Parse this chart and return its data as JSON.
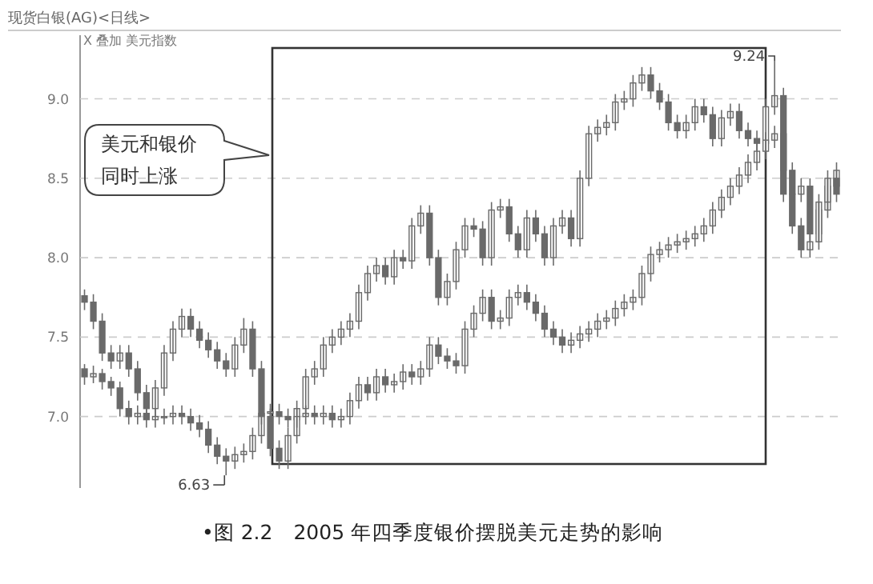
{
  "chart_data": {
    "type": "candlestick",
    "title": "现货白银(AG)<日线>",
    "subtitle": "X 叠加 美元指数",
    "categories": [
      null,
      null,
      null,
      null,
      null,
      null,
      null,
      null,
      null,
      null,
      null,
      null,
      null,
      null,
      null,
      null,
      null,
      null,
      null,
      null,
      null,
      null,
      null,
      null,
      null,
      null,
      null,
      null,
      null,
      null,
      null,
      null,
      null,
      null,
      null,
      null,
      null,
      null,
      null,
      null,
      null,
      null,
      null,
      null,
      null,
      null,
      null,
      null,
      null,
      null,
      null,
      null,
      null,
      null,
      null,
      null,
      null,
      null,
      null,
      null,
      null,
      null,
      null,
      null,
      null,
      null,
      null,
      null,
      null,
      null,
      null,
      null,
      null,
      null,
      null,
      null,
      null,
      null,
      null,
      null,
      null,
      null,
      null,
      null,
      null,
      null
    ],
    "ylim": [
      6.55,
      9.32
    ],
    "yticks": [
      {
        "value": 7,
        "label": "7.0"
      },
      7.5,
      {
        "value": 8,
        "label": "8.0"
      },
      8.5,
      {
        "value": 9,
        "label": "9.0"
      }
    ],
    "grid": "y",
    "series": [
      {
        "color": "#6a6a6a",
        "ohlc": [
          [
            7.3,
            7.33,
            7.2,
            7.25
          ],
          [
            7.25,
            7.32,
            7.21,
            7.27
          ],
          [
            7.27,
            7.3,
            7.17,
            7.22
          ],
          [
            7.22,
            7.25,
            7.13,
            7.18
          ],
          [
            7.18,
            7.22,
            7.0,
            7.05
          ],
          [
            7.05,
            7.1,
            6.95,
            7.0
          ],
          [
            7.0,
            7.07,
            6.95,
            7.02
          ],
          [
            7.02,
            7.07,
            6.93,
            6.98
          ],
          [
            6.98,
            7.05,
            6.93,
            7.0
          ],
          [
            7.0,
            7.05,
            6.95,
            7.0
          ],
          [
            7.0,
            7.07,
            6.95,
            7.02
          ],
          [
            7.02,
            7.07,
            6.95,
            7.0
          ],
          [
            7.0,
            7.05,
            6.91,
            6.96
          ],
          [
            6.96,
            7.01,
            6.87,
            6.92
          ],
          [
            6.92,
            6.97,
            6.77,
            6.82
          ],
          [
            6.82,
            6.87,
            6.7,
            6.75
          ],
          [
            6.75,
            6.8,
            6.63,
            6.72
          ],
          [
            6.72,
            6.81,
            6.67,
            6.76
          ],
          [
            6.76,
            6.83,
            6.71,
            6.78
          ],
          [
            6.78,
            6.93,
            6.73,
            6.88
          ],
          [
            6.88,
            7.07,
            6.83,
            7.02
          ],
          [
            7.02,
            7.08,
            6.97,
            7.03
          ],
          [
            7.03,
            7.08,
            6.95,
            7.0
          ],
          [
            7.0,
            7.05,
            6.93,
            6.98
          ],
          [
            6.98,
            7.1,
            6.93,
            7.05
          ],
          [
            7.05,
            7.3,
            7.0,
            7.25
          ],
          [
            7.25,
            7.35,
            7.2,
            7.3
          ],
          [
            7.3,
            7.5,
            7.25,
            7.45
          ],
          [
            7.45,
            7.55,
            7.4,
            7.5
          ],
          [
            7.5,
            7.6,
            7.45,
            7.55
          ],
          [
            7.55,
            7.65,
            7.5,
            7.6
          ],
          [
            7.6,
            7.83,
            7.55,
            7.78
          ],
          [
            7.78,
            7.95,
            7.73,
            7.9
          ],
          [
            7.9,
            8.0,
            7.85,
            7.95
          ],
          [
            7.95,
            8.0,
            7.83,
            7.88
          ],
          [
            7.88,
            8.05,
            7.83,
            8.0
          ],
          [
            8.0,
            8.05,
            7.93,
            7.98
          ],
          [
            7.98,
            8.25,
            7.93,
            8.2
          ],
          [
            8.2,
            8.33,
            8.15,
            8.28
          ],
          [
            8.28,
            8.33,
            7.95,
            8.0
          ],
          [
            8.0,
            8.05,
            7.7,
            7.75
          ],
          [
            7.75,
            7.9,
            7.7,
            7.85
          ],
          [
            7.85,
            8.1,
            7.8,
            8.05
          ],
          [
            8.05,
            8.25,
            8.0,
            8.2
          ],
          [
            8.2,
            8.25,
            8.13,
            8.18
          ],
          [
            8.18,
            8.23,
            7.95,
            8.0
          ],
          [
            8.0,
            8.35,
            7.95,
            8.3
          ],
          [
            8.3,
            8.37,
            8.25,
            8.32
          ],
          [
            8.32,
            8.37,
            8.1,
            8.15
          ],
          [
            8.15,
            8.2,
            8.0,
            8.05
          ],
          [
            8.05,
            8.3,
            8.0,
            8.25
          ],
          [
            8.25,
            8.3,
            8.1,
            8.15
          ],
          [
            8.15,
            8.2,
            7.95,
            8.0
          ],
          [
            8.0,
            8.25,
            7.95,
            8.2
          ],
          [
            8.2,
            8.3,
            8.15,
            8.25
          ],
          [
            8.25,
            8.3,
            8.07,
            8.12
          ],
          [
            8.12,
            8.55,
            8.07,
            8.5
          ],
          [
            8.5,
            8.83,
            8.45,
            8.78
          ],
          [
            8.78,
            8.87,
            8.73,
            8.82
          ],
          [
            8.82,
            8.9,
            8.77,
            8.85
          ],
          [
            8.85,
            9.03,
            8.8,
            8.98
          ],
          [
            8.98,
            9.05,
            8.93,
            9.0
          ],
          [
            9.0,
            9.15,
            8.95,
            9.1
          ],
          [
            9.1,
            9.2,
            9.05,
            9.15
          ],
          [
            9.15,
            9.2,
            9.0,
            9.05
          ],
          [
            9.05,
            9.1,
            8.93,
            8.98
          ],
          [
            8.98,
            9.03,
            8.8,
            8.85
          ],
          [
            8.85,
            8.9,
            8.75,
            8.8
          ],
          [
            8.8,
            8.9,
            8.75,
            8.85
          ],
          [
            8.85,
            9.0,
            8.8,
            8.95
          ],
          [
            8.95,
            9.0,
            8.85,
            8.9
          ],
          [
            8.9,
            8.95,
            8.7,
            8.75
          ],
          [
            8.75,
            8.93,
            8.7,
            8.88
          ],
          [
            8.88,
            8.97,
            8.83,
            8.92
          ],
          [
            8.92,
            8.97,
            8.75,
            8.8
          ],
          [
            8.8,
            8.85,
            8.7,
            8.75
          ],
          [
            8.75,
            8.8,
            8.67,
            8.72
          ],
          [
            8.72,
            9.0,
            8.67,
            8.95
          ],
          [
            8.95,
            9.24,
            8.9,
            9.02
          ],
          [
            9.02,
            9.07,
            8.5,
            8.55
          ],
          [
            8.55,
            8.6,
            8.35,
            8.4
          ],
          [
            8.4,
            8.5,
            8.35,
            8.45
          ],
          [
            8.45,
            8.5,
            8.1,
            8.15
          ],
          [
            8.15,
            8.35,
            8.1,
            8.3
          ],
          [
            8.3,
            8.5,
            8.25,
            8.45
          ],
          [
            8.45,
            8.6,
            8.4,
            8.55
          ]
        ]
      },
      {
        "color": "#6a6a6a",
        "ohlc": [
          [
            7.76,
            7.8,
            7.67,
            7.72
          ],
          [
            7.72,
            7.77,
            7.55,
            7.6
          ],
          [
            7.6,
            7.65,
            7.35,
            7.4
          ],
          [
            7.4,
            7.45,
            7.3,
            7.35
          ],
          [
            7.35,
            7.45,
            7.3,
            7.4
          ],
          [
            7.4,
            7.45,
            7.25,
            7.3
          ],
          [
            7.3,
            7.35,
            7.1,
            7.15
          ],
          [
            7.15,
            7.2,
            7.0,
            7.05
          ],
          [
            7.05,
            7.23,
            7.0,
            7.18
          ],
          [
            7.18,
            7.45,
            7.13,
            7.4
          ],
          [
            7.4,
            7.6,
            7.35,
            7.55
          ],
          [
            7.55,
            7.68,
            7.5,
            7.63
          ],
          [
            7.63,
            7.68,
            7.5,
            7.55
          ],
          [
            7.55,
            7.6,
            7.43,
            7.48
          ],
          [
            7.48,
            7.53,
            7.37,
            7.42
          ],
          [
            7.42,
            7.47,
            7.3,
            7.35
          ],
          [
            7.35,
            7.4,
            7.25,
            7.3
          ],
          [
            7.3,
            7.5,
            7.25,
            7.45
          ],
          [
            7.45,
            7.62,
            7.4,
            7.55
          ],
          [
            7.55,
            7.6,
            7.25,
            7.3
          ],
          [
            7.3,
            7.35,
            6.95,
            7.0
          ],
          [
            7.0,
            7.05,
            6.75,
            6.8
          ],
          [
            6.8,
            6.85,
            6.67,
            6.72
          ],
          [
            6.72,
            6.93,
            6.67,
            6.88
          ],
          [
            6.88,
            7.05,
            6.83,
            7.0
          ],
          [
            7.0,
            7.07,
            6.95,
            7.02
          ],
          [
            7.02,
            7.07,
            6.95,
            7.0
          ],
          [
            7.0,
            7.07,
            6.95,
            7.02
          ],
          [
            7.02,
            7.07,
            6.93,
            6.98
          ],
          [
            6.98,
            7.05,
            6.93,
            7.0
          ],
          [
            7.0,
            7.15,
            6.95,
            7.1
          ],
          [
            7.1,
            7.25,
            7.05,
            7.2
          ],
          [
            7.2,
            7.25,
            7.1,
            7.15
          ],
          [
            7.15,
            7.3,
            7.1,
            7.25
          ],
          [
            7.25,
            7.3,
            7.15,
            7.2
          ],
          [
            7.2,
            7.27,
            7.15,
            7.22
          ],
          [
            7.22,
            7.33,
            7.17,
            7.28
          ],
          [
            7.28,
            7.33,
            7.2,
            7.25
          ],
          [
            7.25,
            7.35,
            7.2,
            7.3
          ],
          [
            7.3,
            7.5,
            7.25,
            7.45
          ],
          [
            7.45,
            7.5,
            7.33,
            7.38
          ],
          [
            7.38,
            7.43,
            7.3,
            7.35
          ],
          [
            7.35,
            7.4,
            7.27,
            7.32
          ],
          [
            7.32,
            7.6,
            7.27,
            7.55
          ],
          [
            7.55,
            7.7,
            7.5,
            7.65
          ],
          [
            7.65,
            7.8,
            7.6,
            7.75
          ],
          [
            7.75,
            7.8,
            7.55,
            7.6
          ],
          [
            7.6,
            7.67,
            7.55,
            7.62
          ],
          [
            7.62,
            7.8,
            7.57,
            7.75
          ],
          [
            7.75,
            7.83,
            7.7,
            7.78
          ],
          [
            7.78,
            7.83,
            7.67,
            7.72
          ],
          [
            7.72,
            7.77,
            7.6,
            7.65
          ],
          [
            7.65,
            7.7,
            7.5,
            7.55
          ],
          [
            7.55,
            7.6,
            7.45,
            7.5
          ],
          [
            7.5,
            7.55,
            7.4,
            7.45
          ],
          [
            7.45,
            7.53,
            7.4,
            7.48
          ],
          [
            7.48,
            7.57,
            7.43,
            7.52
          ],
          [
            7.52,
            7.6,
            7.47,
            7.55
          ],
          [
            7.55,
            7.65,
            7.5,
            7.6
          ],
          [
            7.6,
            7.67,
            7.55,
            7.62
          ],
          [
            7.62,
            7.73,
            7.57,
            7.68
          ],
          [
            7.68,
            7.77,
            7.63,
            7.72
          ],
          [
            7.72,
            7.8,
            7.67,
            7.75
          ],
          [
            7.75,
            7.95,
            7.7,
            7.9
          ],
          [
            7.9,
            8.07,
            7.85,
            8.02
          ],
          [
            8.02,
            8.1,
            7.97,
            8.05
          ],
          [
            8.05,
            8.13,
            8.0,
            8.08
          ],
          [
            8.08,
            8.15,
            8.03,
            8.1
          ],
          [
            8.1,
            8.17,
            8.05,
            8.12
          ],
          [
            8.12,
            8.2,
            8.07,
            8.15
          ],
          [
            8.15,
            8.25,
            8.1,
            8.2
          ],
          [
            8.2,
            8.35,
            8.15,
            8.3
          ],
          [
            8.3,
            8.43,
            8.25,
            8.38
          ],
          [
            8.38,
            8.5,
            8.33,
            8.45
          ],
          [
            8.45,
            8.57,
            8.4,
            8.52
          ],
          [
            8.52,
            8.65,
            8.47,
            8.6
          ],
          [
            8.6,
            8.72,
            8.55,
            8.67
          ],
          [
            8.67,
            8.79,
            8.62,
            8.74
          ],
          [
            8.74,
            8.83,
            8.69,
            8.78
          ],
          [
            8.78,
            8.83,
            8.35,
            8.4
          ],
          [
            8.4,
            8.45,
            8.15,
            8.2
          ],
          [
            8.2,
            8.25,
            8.0,
            8.05
          ],
          [
            8.05,
            8.15,
            8.0,
            8.1
          ],
          [
            8.1,
            8.4,
            8.05,
            8.35
          ],
          [
            8.35,
            8.55,
            8.3,
            8.5
          ],
          [
            8.5,
            8.55,
            8.35,
            8.4
          ]
        ]
      }
    ],
    "annotations": [
      "美元和银价",
      "同时上涨",
      "9.24",
      "6.63",
      "•图 2.2　2005 年四季度银价摆脱美元走势的影响"
    ]
  }
}
